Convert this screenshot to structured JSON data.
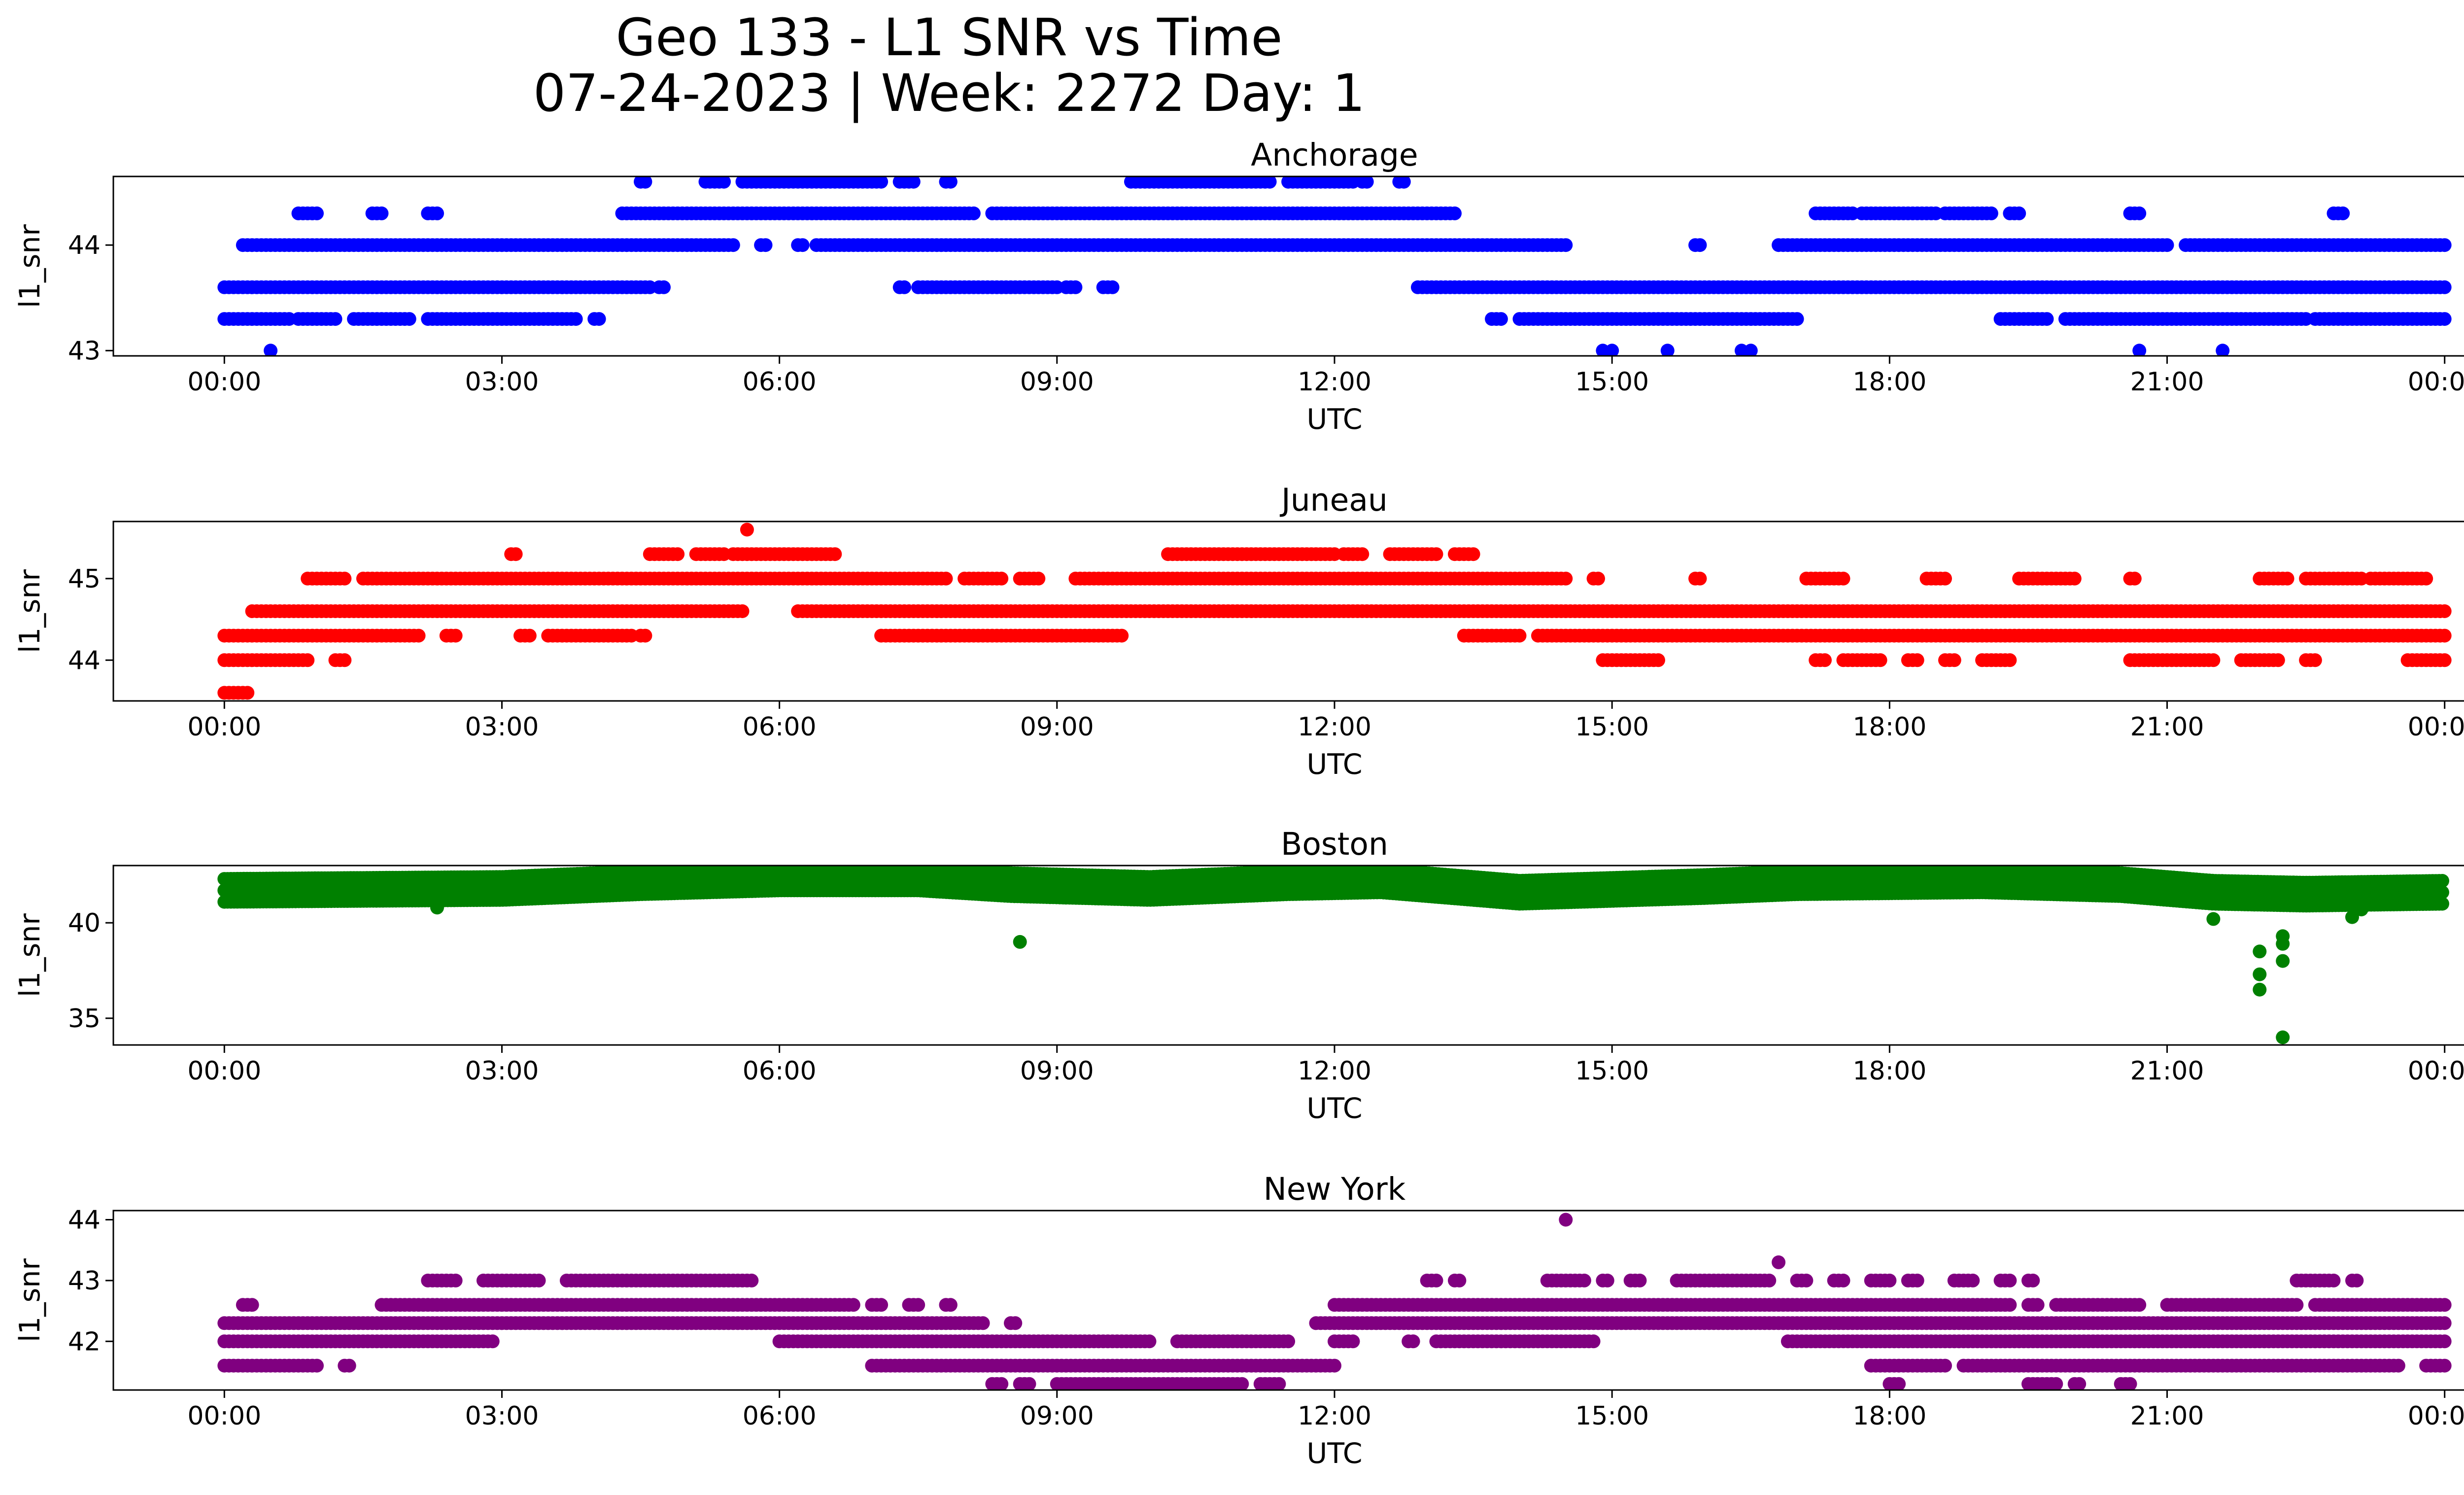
{
  "figure": {
    "title_line1": "Geo 133 - L1 SNR vs Time",
    "title_line2": "07-24-2023 | Week: 2272 Day: 1"
  },
  "chart_data": [
    {
      "type": "scatter",
      "title": "Anchorage",
      "xlabel": "UTC",
      "ylabel": "l1_snr",
      "color": "#0000ff",
      "x_ticks": [
        "00:00",
        "03:00",
        "06:00",
        "09:00",
        "12:00",
        "15:00",
        "18:00",
        "21:00",
        "00:00"
      ],
      "x_range_hours": [
        -1.2,
        25.2
      ],
      "y_ticks": [
        43,
        44
      ],
      "ylim": [
        42.95,
        44.65
      ],
      "bands": [
        {
          "y": 43.3,
          "segments": [
            [
              0.0,
              0.7
            ],
            [
              0.8,
              1.2
            ],
            [
              1.4,
              2.0
            ],
            [
              2.2,
              3.8
            ],
            [
              4.0,
              4.05
            ],
            [
              13.7,
              13.8
            ],
            [
              14.0,
              17.0
            ],
            [
              19.2,
              19.7
            ],
            [
              19.9,
              22.5
            ],
            [
              22.6,
              24.0
            ]
          ]
        },
        {
          "y": 43.6,
          "segments": [
            [
              0.0,
              4.6
            ],
            [
              4.7,
              4.75
            ],
            [
              7.3,
              7.35
            ],
            [
              7.5,
              9.0
            ],
            [
              9.1,
              9.2
            ],
            [
              9.5,
              9.6
            ],
            [
              12.9,
              24.0
            ]
          ]
        },
        {
          "y": 44.0,
          "segments": [
            [
              0.2,
              5.5
            ],
            [
              5.8,
              5.85
            ],
            [
              6.2,
              6.25
            ],
            [
              6.4,
              14.5
            ],
            [
              15.9,
              15.95
            ],
            [
              16.8,
              21.0
            ],
            [
              21.2,
              24.0
            ]
          ]
        },
        {
          "y": 44.3,
          "segments": [
            [
              0.8,
              1.0
            ],
            [
              1.6,
              1.7
            ],
            [
              2.2,
              2.3
            ],
            [
              4.3,
              8.1
            ],
            [
              8.3,
              13.3
            ],
            [
              17.2,
              17.6
            ],
            [
              17.7,
              18.5
            ],
            [
              18.6,
              19.1
            ],
            [
              19.3,
              19.4
            ],
            [
              20.6,
              20.7
            ],
            [
              22.8,
              22.9
            ]
          ]
        },
        {
          "y": 44.6,
          "segments": [
            [
              4.5,
              4.55
            ],
            [
              5.2,
              5.4
            ],
            [
              5.6,
              7.1
            ],
            [
              7.3,
              7.45
            ],
            [
              7.8,
              7.85
            ],
            [
              9.8,
              11.3
            ],
            [
              11.5,
              12.2
            ],
            [
              12.3,
              12.35
            ],
            [
              12.7,
              12.75
            ]
          ]
        }
      ],
      "outliers": [
        [
          0.5,
          43.0
        ],
        [
          14.9,
          43.0
        ],
        [
          15.0,
          43.0
        ],
        [
          15.6,
          43.0
        ],
        [
          16.4,
          43.0
        ],
        [
          16.5,
          43.0
        ],
        [
          20.7,
          43.0
        ],
        [
          21.6,
          43.0
        ]
      ]
    },
    {
      "type": "scatter",
      "title": "Juneau",
      "xlabel": "UTC",
      "ylabel": "l1_snr",
      "color": "#ff0000",
      "x_ticks": [
        "00:00",
        "03:00",
        "06:00",
        "09:00",
        "12:00",
        "15:00",
        "18:00",
        "21:00",
        "00:00"
      ],
      "x_range_hours": [
        -1.2,
        25.2
      ],
      "y_ticks": [
        44,
        45
      ],
      "ylim": [
        43.5,
        45.7
      ],
      "bands": [
        {
          "y": 43.6,
          "segments": [
            [
              0.0,
              0.25
            ]
          ]
        },
        {
          "y": 44.0,
          "segments": [
            [
              0.0,
              0.9
            ],
            [
              1.2,
              1.3
            ],
            [
              14.9,
              15.5
            ],
            [
              17.2,
              17.3
            ],
            [
              17.5,
              17.9
            ],
            [
              18.2,
              18.3
            ],
            [
              18.6,
              18.7
            ],
            [
              19.0,
              19.3
            ],
            [
              20.6,
              21.5
            ],
            [
              21.8,
              22.2
            ],
            [
              22.5,
              22.6
            ],
            [
              23.6,
              24.0
            ]
          ]
        },
        {
          "y": 44.3,
          "segments": [
            [
              0.0,
              2.1
            ],
            [
              2.4,
              2.5
            ],
            [
              3.2,
              3.3
            ],
            [
              3.5,
              4.4
            ],
            [
              4.5,
              4.55
            ],
            [
              7.1,
              9.7
            ],
            [
              13.4,
              14.0
            ],
            [
              14.2,
              24.0
            ]
          ]
        },
        {
          "y": 44.6,
          "segments": [
            [
              0.3,
              5.6
            ],
            [
              6.2,
              24.0
            ]
          ]
        },
        {
          "y": 45.0,
          "segments": [
            [
              0.9,
              1.3
            ],
            [
              1.5,
              7.8
            ],
            [
              8.0,
              8.4
            ],
            [
              8.6,
              8.8
            ],
            [
              9.2,
              14.5
            ],
            [
              14.8,
              14.85
            ],
            [
              15.9,
              15.95
            ],
            [
              17.1,
              17.5
            ],
            [
              18.4,
              18.6
            ],
            [
              19.4,
              20.0
            ],
            [
              20.6,
              20.65
            ],
            [
              22.0,
              22.3
            ],
            [
              22.5,
              23.1
            ],
            [
              23.2,
              23.8
            ]
          ]
        },
        {
          "y": 45.3,
          "segments": [
            [
              3.1,
              3.15
            ],
            [
              4.6,
              4.9
            ],
            [
              5.1,
              5.4
            ],
            [
              5.5,
              6.6
            ],
            [
              10.2,
              12.0
            ],
            [
              12.1,
              12.3
            ],
            [
              12.6,
              13.1
            ],
            [
              13.3,
              13.5
            ]
          ]
        }
      ],
      "outliers": [
        [
          5.65,
          45.6
        ]
      ]
    },
    {
      "type": "scatter",
      "title": "Boston",
      "xlabel": "UTC",
      "ylabel": "l1_snr",
      "color": "#008000",
      "x_ticks": [
        "00:00",
        "03:00",
        "06:00",
        "09:00",
        "12:00",
        "15:00",
        "18:00",
        "21:00",
        "00:00"
      ],
      "x_range_hours": [
        -1.2,
        25.2
      ],
      "y_ticks": [
        35,
        40
      ],
      "ylim": [
        33.6,
        43.0
      ],
      "band_trend": [
        [
          0,
          41.7
        ],
        [
          3,
          41.8
        ],
        [
          4.5,
          42.1
        ],
        [
          6,
          42.3
        ],
        [
          7.5,
          42.3
        ],
        [
          8.5,
          42.0
        ],
        [
          10,
          41.8
        ],
        [
          11.5,
          42.1
        ],
        [
          12.5,
          42.2
        ],
        [
          14,
          41.6
        ],
        [
          16,
          41.9
        ],
        [
          17,
          42.1
        ],
        [
          19,
          42.2
        ],
        [
          20.5,
          42.0
        ],
        [
          21.5,
          41.6
        ],
        [
          22.5,
          41.5
        ],
        [
          24,
          41.6
        ]
      ],
      "band_halfwidth": 0.6,
      "outliers": [
        [
          8.6,
          39.0
        ],
        [
          2.3,
          40.8
        ],
        [
          21.5,
          40.2
        ],
        [
          22.0,
          38.5
        ],
        [
          22.0,
          37.3
        ],
        [
          22.0,
          36.5
        ],
        [
          22.25,
          39.3
        ],
        [
          22.25,
          38.9
        ],
        [
          22.25,
          38.0
        ],
        [
          22.25,
          34.0
        ],
        [
          23.0,
          40.3
        ],
        [
          23.1,
          40.7
        ]
      ]
    },
    {
      "type": "scatter",
      "title": "New York",
      "xlabel": "UTC",
      "ylabel": "l1_snr",
      "color": "#800080",
      "x_ticks": [
        "00:00",
        "03:00",
        "06:00",
        "09:00",
        "12:00",
        "15:00",
        "18:00",
        "21:00",
        "00:00"
      ],
      "x_range_hours": [
        -1.2,
        25.2
      ],
      "y_ticks": [
        42,
        43,
        44
      ],
      "ylim": [
        41.2,
        44.15
      ],
      "bands": [
        {
          "y": 41.3,
          "segments": [
            [
              8.3,
              8.4
            ],
            [
              8.6,
              8.7
            ],
            [
              9.0,
              11.0
            ],
            [
              11.2,
              11.4
            ],
            [
              18.0,
              18.1
            ],
            [
              19.5,
              19.8
            ],
            [
              20.0,
              20.05
            ],
            [
              20.5,
              20.6
            ]
          ]
        },
        {
          "y": 41.6,
          "segments": [
            [
              0.0,
              1.0
            ],
            [
              1.3,
              1.35
            ],
            [
              7.0,
              12.0
            ],
            [
              17.8,
              18.6
            ],
            [
              18.8,
              23.5
            ],
            [
              23.8,
              24.0
            ]
          ]
        },
        {
          "y": 42.0,
          "segments": [
            [
              0.0,
              2.9
            ],
            [
              6.0,
              10.0
            ],
            [
              10.3,
              11.5
            ],
            [
              12.0,
              12.2
            ],
            [
              12.8,
              12.85
            ],
            [
              13.1,
              14.8
            ],
            [
              16.9,
              24.0
            ]
          ]
        },
        {
          "y": 42.3,
          "segments": [
            [
              0.0,
              8.2
            ],
            [
              8.5,
              8.55
            ],
            [
              11.8,
              24.0
            ]
          ]
        },
        {
          "y": 42.6,
          "segments": [
            [
              0.2,
              0.3
            ],
            [
              1.7,
              6.8
            ],
            [
              7.0,
              7.1
            ],
            [
              7.4,
              7.5
            ],
            [
              7.8,
              7.85
            ],
            [
              12.0,
              19.3
            ],
            [
              19.5,
              19.6
            ],
            [
              19.8,
              20.7
            ],
            [
              21.0,
              22.4
            ],
            [
              22.6,
              24.0
            ]
          ]
        },
        {
          "y": 43.0,
          "segments": [
            [
              2.2,
              2.5
            ],
            [
              2.8,
              3.4
            ],
            [
              3.7,
              5.7
            ],
            [
              13.0,
              13.1
            ],
            [
              13.3,
              13.35
            ],
            [
              14.3,
              14.7
            ],
            [
              14.9,
              14.95
            ],
            [
              15.2,
              15.3
            ],
            [
              15.7,
              16.7
            ],
            [
              17.0,
              17.1
            ],
            [
              17.4,
              17.5
            ],
            [
              17.8,
              18.0
            ],
            [
              18.2,
              18.3
            ],
            [
              18.7,
              18.9
            ],
            [
              19.2,
              19.3
            ],
            [
              19.5,
              19.55
            ],
            [
              22.4,
              22.8
            ],
            [
              23.0,
              23.05
            ]
          ]
        }
      ],
      "outliers": [
        [
          14.5,
          44.0
        ],
        [
          16.8,
          43.3
        ]
      ]
    }
  ]
}
